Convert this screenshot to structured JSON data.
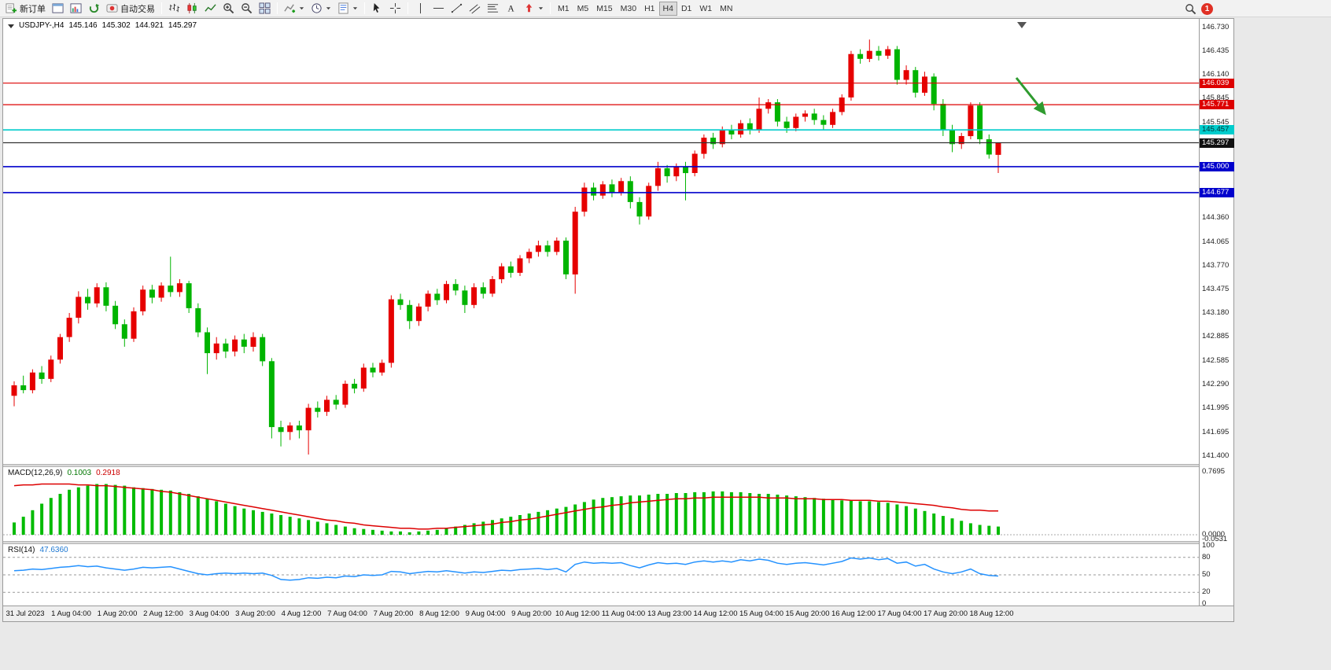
{
  "toolbar": {
    "new_order_label": "新订单",
    "autotrade_label": "自动交易",
    "timeframes": [
      "M1",
      "M5",
      "M15",
      "M30",
      "H1",
      "H4",
      "D1",
      "W1",
      "MN"
    ],
    "active_timeframe": "H4",
    "notification_badge": "1"
  },
  "chart_header": {
    "symbol_period": "USDJPY-,H4",
    "open": "145.146",
    "high": "145.302",
    "low": "144.921",
    "close": "145.297"
  },
  "macd_panel": {
    "label": "MACD(12,26,9)",
    "value": "0.1003",
    "signal": "0.2918"
  },
  "rsi_panel": {
    "label": "RSI(14)",
    "value": "47.6360"
  },
  "chart_data": {
    "type": "candlestick",
    "symbol": "USDJPY-",
    "timeframe": "H4",
    "up_color": "#e60000",
    "down_color": "#00b400",
    "price_axis": {
      "max": 146.73,
      "min": 141.4,
      "ticks": [
        "146.730",
        "146.435",
        "146.140",
        "145.845",
        "145.545",
        "145.250",
        "144.955",
        "144.660",
        "144.360",
        "144.065",
        "143.770",
        "143.475",
        "143.180",
        "142.885",
        "142.585",
        "142.290",
        "141.995",
        "141.695",
        "141.400"
      ]
    },
    "time_ticks": [
      "31 Jul 2023",
      "1 Aug 04:00",
      "1 Aug 20:00",
      "2 Aug 12:00",
      "3 Aug 04:00",
      "3 Aug 20:00",
      "4 Aug 12:00",
      "7 Aug 04:00",
      "7 Aug 20:00",
      "8 Aug 12:00",
      "9 Aug 04:00",
      "9 Aug 20:00",
      "10 Aug 12:00",
      "11 Aug 04:00",
      "13 Aug 23:00",
      "14 Aug 12:00",
      "15 Aug 04:00",
      "15 Aug 20:00",
      "16 Aug 12:00",
      "17 Aug 04:00",
      "17 Aug 20:00",
      "18 Aug 12:00"
    ],
    "candles": [
      [
        142.15,
        142.33,
        142.02,
        142.28
      ],
      [
        142.28,
        142.4,
        142.18,
        142.22
      ],
      [
        142.22,
        142.48,
        142.18,
        142.44
      ],
      [
        142.44,
        142.52,
        142.3,
        142.36
      ],
      [
        142.36,
        142.65,
        142.32,
        142.6
      ],
      [
        142.6,
        142.92,
        142.55,
        142.88
      ],
      [
        142.88,
        143.18,
        142.82,
        143.12
      ],
      [
        143.12,
        143.45,
        143.05,
        143.38
      ],
      [
        143.38,
        143.48,
        143.22,
        143.3
      ],
      [
        143.3,
        143.55,
        143.25,
        143.5
      ],
      [
        143.5,
        143.56,
        143.2,
        143.27
      ],
      [
        143.27,
        143.33,
        142.98,
        143.04
      ],
      [
        143.04,
        143.1,
        142.76,
        142.86
      ],
      [
        142.86,
        143.25,
        142.82,
        143.2
      ],
      [
        143.2,
        143.52,
        143.15,
        143.47
      ],
      [
        143.47,
        143.53,
        143.3,
        143.37
      ],
      [
        143.37,
        143.56,
        143.32,
        143.52
      ],
      [
        143.52,
        143.88,
        143.38,
        143.44
      ],
      [
        143.44,
        143.6,
        143.38,
        143.55
      ],
      [
        143.55,
        143.58,
        143.18,
        143.24
      ],
      [
        143.24,
        143.3,
        142.88,
        142.94
      ],
      [
        142.94,
        143.0,
        142.42,
        142.68
      ],
      [
        142.68,
        142.88,
        142.6,
        142.8
      ],
      [
        142.8,
        142.86,
        142.62,
        142.7
      ],
      [
        142.7,
        142.9,
        142.64,
        142.85
      ],
      [
        142.85,
        142.92,
        142.68,
        142.76
      ],
      [
        142.76,
        142.94,
        142.7,
        142.88
      ],
      [
        142.88,
        142.92,
        142.52,
        142.58
      ],
      [
        142.58,
        142.62,
        141.62,
        141.76
      ],
      [
        141.76,
        141.84,
        141.52,
        141.7
      ],
      [
        141.7,
        141.82,
        141.6,
        141.78
      ],
      [
        141.78,
        141.84,
        141.62,
        141.72
      ],
      [
        141.72,
        142.05,
        141.42,
        142.0
      ],
      [
        142.0,
        142.08,
        141.88,
        141.95
      ],
      [
        141.95,
        142.15,
        141.9,
        142.1
      ],
      [
        142.1,
        142.16,
        141.98,
        142.04
      ],
      [
        142.04,
        142.34,
        142.0,
        142.3
      ],
      [
        142.3,
        142.36,
        142.18,
        142.24
      ],
      [
        142.24,
        142.55,
        142.2,
        142.5
      ],
      [
        142.5,
        142.56,
        142.38,
        142.44
      ],
      [
        142.44,
        142.6,
        142.4,
        142.56
      ],
      [
        142.56,
        143.4,
        142.5,
        143.35
      ],
      [
        143.35,
        143.42,
        143.22,
        143.28
      ],
      [
        143.28,
        143.34,
        142.98,
        143.08
      ],
      [
        143.08,
        143.3,
        143.02,
        143.26
      ],
      [
        143.26,
        143.46,
        143.2,
        143.42
      ],
      [
        143.42,
        143.48,
        143.28,
        143.34
      ],
      [
        143.34,
        143.58,
        143.3,
        143.54
      ],
      [
        143.54,
        143.6,
        143.4,
        143.46
      ],
      [
        143.46,
        143.52,
        143.18,
        143.28
      ],
      [
        143.28,
        143.55,
        143.24,
        143.5
      ],
      [
        143.5,
        143.56,
        143.36,
        143.42
      ],
      [
        143.42,
        143.64,
        143.38,
        143.6
      ],
      [
        143.6,
        143.8,
        143.55,
        143.76
      ],
      [
        143.76,
        143.82,
        143.62,
        143.68
      ],
      [
        143.68,
        143.9,
        143.64,
        143.86
      ],
      [
        143.86,
        143.98,
        143.8,
        143.94
      ],
      [
        143.94,
        144.08,
        143.88,
        144.02
      ],
      [
        144.02,
        144.08,
        143.88,
        143.94
      ],
      [
        143.94,
        144.12,
        143.9,
        144.08
      ],
      [
        144.08,
        144.12,
        143.6,
        143.66
      ],
      [
        143.66,
        144.5,
        143.42,
        144.44
      ],
      [
        144.44,
        144.8,
        144.38,
        144.74
      ],
      [
        144.74,
        144.8,
        144.58,
        144.64
      ],
      [
        144.64,
        144.82,
        144.6,
        144.78
      ],
      [
        144.78,
        144.84,
        144.62,
        144.68
      ],
      [
        144.68,
        144.86,
        144.64,
        144.82
      ],
      [
        144.82,
        144.88,
        144.48,
        144.56
      ],
      [
        144.56,
        144.62,
        144.28,
        144.38
      ],
      [
        144.38,
        144.8,
        144.34,
        144.76
      ],
      [
        144.76,
        145.06,
        144.7,
        144.98
      ],
      [
        144.98,
        145.02,
        144.8,
        144.88
      ],
      [
        144.88,
        145.04,
        144.82,
        145.0
      ],
      [
        145.0,
        145.06,
        144.58,
        144.92
      ],
      [
        144.92,
        145.2,
        144.88,
        145.16
      ],
      [
        145.16,
        145.4,
        145.1,
        145.36
      ],
      [
        145.36,
        145.42,
        145.22,
        145.28
      ],
      [
        145.28,
        145.5,
        145.24,
        145.46
      ],
      [
        145.46,
        145.52,
        145.34,
        145.4
      ],
      [
        145.4,
        145.58,
        145.36,
        145.54
      ],
      [
        145.54,
        145.6,
        145.4,
        145.46
      ],
      [
        145.46,
        145.86,
        145.42,
        145.72
      ],
      [
        145.72,
        145.84,
        145.66,
        145.8
      ],
      [
        145.8,
        145.84,
        145.5,
        145.56
      ],
      [
        145.56,
        145.62,
        145.42,
        145.48
      ],
      [
        145.48,
        145.66,
        145.44,
        145.62
      ],
      [
        145.62,
        145.7,
        145.56,
        145.66
      ],
      [
        145.66,
        145.72,
        145.52,
        145.58
      ],
      [
        145.58,
        145.64,
        145.46,
        145.52
      ],
      [
        145.52,
        145.72,
        145.48,
        145.68
      ],
      [
        145.68,
        145.9,
        145.64,
        145.86
      ],
      [
        145.86,
        146.44,
        145.82,
        146.4
      ],
      [
        146.4,
        146.46,
        146.28,
        146.34
      ],
      [
        146.34,
        146.58,
        146.3,
        146.44
      ],
      [
        146.44,
        146.5,
        146.32,
        146.38
      ],
      [
        146.38,
        146.5,
        146.34,
        146.46
      ],
      [
        146.46,
        146.5,
        146.02,
        146.08
      ],
      [
        146.08,
        146.26,
        146.02,
        146.2
      ],
      [
        146.2,
        146.24,
        145.86,
        145.92
      ],
      [
        145.92,
        146.18,
        145.88,
        146.12
      ],
      [
        146.12,
        146.16,
        145.7,
        145.78
      ],
      [
        145.78,
        145.84,
        145.38,
        145.46
      ],
      [
        145.46,
        145.52,
        145.18,
        145.28
      ],
      [
        145.28,
        145.42,
        145.22,
        145.38
      ],
      [
        145.38,
        145.8,
        145.34,
        145.76
      ],
      [
        145.76,
        145.8,
        145.28,
        145.34
      ],
      [
        145.34,
        145.4,
        145.1,
        145.15
      ],
      [
        145.146,
        145.302,
        144.921,
        145.297
      ]
    ],
    "hlines": [
      {
        "price": 146.039,
        "color": "#dd0000",
        "width": 1.2
      },
      {
        "price": 145.771,
        "color": "#dd0000",
        "width": 1.2
      },
      {
        "price": 145.457,
        "color": "#00cccc",
        "width": 1.6
      },
      {
        "price": 145.297,
        "color": "#333333",
        "width": 1.2
      },
      {
        "price": 145.0,
        "color": "#0000cc",
        "width": 1.6
      },
      {
        "price": 144.677,
        "color": "#0000cc",
        "width": 1.6
      }
    ],
    "price_tags": [
      {
        "price": 146.039,
        "text": "146.039",
        "bg": "#dd0000",
        "fg": "#ffffff"
      },
      {
        "price": 145.771,
        "text": "145.771",
        "bg": "#dd0000",
        "fg": "#ffffff"
      },
      {
        "price": 145.457,
        "text": "145.457",
        "bg": "#00cccc",
        "fg": "#003333"
      },
      {
        "price": 145.297,
        "text": "145.297",
        "bg": "#111111",
        "fg": "#ffffff"
      },
      {
        "price": 145.0,
        "text": "145.000",
        "bg": "#0000cc",
        "fg": "#ffffff"
      },
      {
        "price": 144.677,
        "text": "144.677",
        "bg": "#0000cc",
        "fg": "#ffffff"
      }
    ],
    "macd": {
      "histogram_color": "#00bb00",
      "signal_color": "#dd0000",
      "ticks": [
        "0.7695",
        "0.0000",
        "-0.0531"
      ],
      "histogram": [
        0.15,
        0.22,
        0.3,
        0.38,
        0.45,
        0.5,
        0.55,
        0.58,
        0.6,
        0.62,
        0.62,
        0.61,
        0.6,
        0.58,
        0.57,
        0.56,
        0.55,
        0.54,
        0.52,
        0.5,
        0.47,
        0.44,
        0.41,
        0.38,
        0.35,
        0.32,
        0.3,
        0.28,
        0.26,
        0.24,
        0.22,
        0.2,
        0.18,
        0.16,
        0.14,
        0.12,
        0.1,
        0.08,
        0.07,
        0.06,
        0.05,
        0.04,
        0.04,
        0.03,
        0.04,
        0.05,
        0.06,
        0.08,
        0.1,
        0.12,
        0.14,
        0.16,
        0.18,
        0.2,
        0.22,
        0.24,
        0.26,
        0.28,
        0.3,
        0.32,
        0.34,
        0.37,
        0.4,
        0.43,
        0.45,
        0.46,
        0.47,
        0.48,
        0.48,
        0.49,
        0.5,
        0.5,
        0.51,
        0.51,
        0.52,
        0.52,
        0.53,
        0.53,
        0.52,
        0.52,
        0.51,
        0.5,
        0.5,
        0.49,
        0.48,
        0.47,
        0.46,
        0.45,
        0.44,
        0.43,
        0.42,
        0.42,
        0.41,
        0.41,
        0.4,
        0.39,
        0.37,
        0.35,
        0.32,
        0.29,
        0.26,
        0.23,
        0.2,
        0.17,
        0.14,
        0.12,
        0.11,
        0.1
      ],
      "signal": [
        0.6,
        0.61,
        0.61,
        0.62,
        0.62,
        0.62,
        0.62,
        0.61,
        0.61,
        0.6,
        0.6,
        0.59,
        0.58,
        0.57,
        0.56,
        0.55,
        0.53,
        0.52,
        0.5,
        0.48,
        0.46,
        0.44,
        0.42,
        0.4,
        0.38,
        0.36,
        0.34,
        0.32,
        0.3,
        0.28,
        0.26,
        0.24,
        0.22,
        0.2,
        0.18,
        0.17,
        0.15,
        0.14,
        0.12,
        0.11,
        0.1,
        0.09,
        0.08,
        0.08,
        0.07,
        0.07,
        0.08,
        0.08,
        0.09,
        0.1,
        0.11,
        0.12,
        0.13,
        0.15,
        0.16,
        0.18,
        0.19,
        0.21,
        0.23,
        0.25,
        0.27,
        0.29,
        0.31,
        0.33,
        0.34,
        0.36,
        0.37,
        0.39,
        0.4,
        0.41,
        0.42,
        0.43,
        0.44,
        0.44,
        0.45,
        0.45,
        0.46,
        0.46,
        0.46,
        0.46,
        0.46,
        0.46,
        0.45,
        0.45,
        0.45,
        0.44,
        0.44,
        0.44,
        0.43,
        0.43,
        0.43,
        0.42,
        0.42,
        0.42,
        0.41,
        0.41,
        0.4,
        0.39,
        0.38,
        0.37,
        0.36,
        0.34,
        0.33,
        0.31,
        0.3,
        0.3,
        0.29,
        0.29
      ]
    },
    "rsi": {
      "color": "#2492ff",
      "levels": [
        80,
        50,
        20
      ],
      "ticks": [
        "100",
        "80",
        "50",
        "20",
        "0"
      ],
      "values": [
        57,
        58,
        60,
        59,
        61,
        63,
        64,
        66,
        64,
        65,
        62,
        60,
        58,
        60,
        63,
        62,
        63,
        64,
        60,
        56,
        52,
        50,
        52,
        53,
        52,
        53,
        52,
        53,
        49,
        42,
        41,
        42,
        45,
        44,
        46,
        45,
        48,
        47,
        50,
        49,
        50,
        56,
        55,
        52,
        54,
        56,
        55,
        57,
        55,
        53,
        55,
        54,
        56,
        58,
        57,
        59,
        60,
        61,
        59,
        61,
        55,
        68,
        72,
        70,
        71,
        70,
        71,
        66,
        62,
        67,
        71,
        69,
        70,
        68,
        72,
        74,
        72,
        74,
        72,
        76,
        74,
        77,
        75,
        70,
        68,
        70,
        71,
        69,
        67,
        70,
        73,
        79,
        77,
        79,
        76,
        78,
        70,
        72,
        65,
        68,
        60,
        55,
        52,
        55,
        60,
        52,
        49,
        48
      ]
    },
    "annotation_arrow": {
      "color": "#2f9b2f"
    }
  }
}
